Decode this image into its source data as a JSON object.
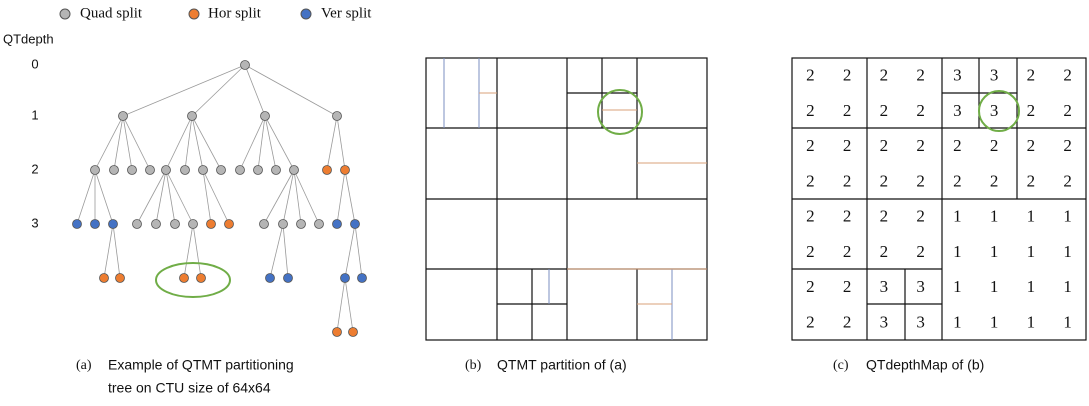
{
  "legend": [
    "Quad split",
    "Hor split",
    "Ver split"
  ],
  "axis_title": "QTdepth",
  "depths": [
    "0",
    "1",
    "2",
    "3"
  ],
  "captions": [
    {
      "letter": "(a)",
      "lines": [
        "Example of QTMT partitioning",
        "tree on CTU size of 64x64"
      ]
    },
    {
      "letter": "(b)",
      "lines": [
        "QTMT partition of (a)"
      ]
    },
    {
      "letter": "(c)",
      "lines": [
        "QTdepthMap of (b)"
      ]
    }
  ],
  "depth_map": [
    [
      2,
      2,
      2,
      2,
      3,
      3,
      2,
      2
    ],
    [
      2,
      2,
      2,
      2,
      3,
      3,
      2,
      2
    ],
    [
      2,
      2,
      2,
      2,
      2,
      2,
      2,
      2
    ],
    [
      2,
      2,
      2,
      2,
      2,
      2,
      2,
      2
    ],
    [
      2,
      2,
      2,
      2,
      1,
      1,
      1,
      1
    ],
    [
      2,
      2,
      2,
      2,
      1,
      1,
      1,
      1
    ],
    [
      2,
      2,
      3,
      3,
      1,
      1,
      1,
      1
    ],
    [
      2,
      2,
      3,
      3,
      1,
      1,
      1,
      1
    ]
  ]
}
